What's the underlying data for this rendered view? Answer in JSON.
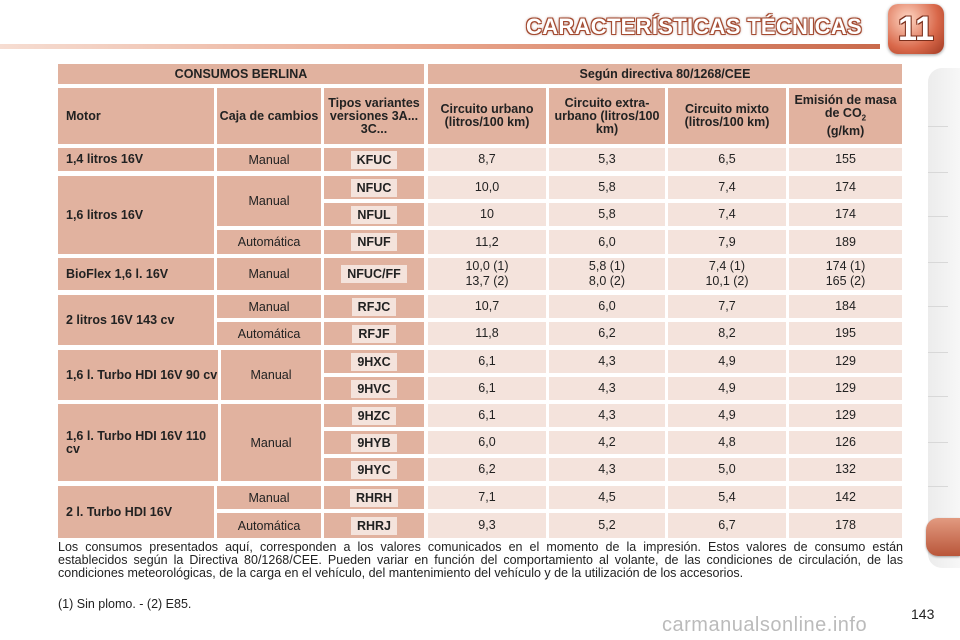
{
  "header": {
    "title": "CARACTERÍSTICAS TÉCNICAS",
    "chapter": "11"
  },
  "table": {
    "group_left": "CONSUMOS BERLINA",
    "group_right": "Según directiva 80/1268/CEE",
    "columns": {
      "motor": "Motor",
      "caja": "Caja de cambios",
      "tipos": "Tipos variantes versiones 3A... 3C...",
      "urbano": "Circuito urbano (litros/100 km)",
      "extra": "Circuito extra-urbano (litros/100 km)",
      "mixto": "Circuito mixto (litros/100 km)",
      "emision": "Emisión de masa de CO",
      "emision_sub": "2",
      "emision_unit": "(g/km)"
    },
    "engines": [
      {
        "name": "1,4 litros 16V"
      },
      {
        "name": "1,6 litros 16V"
      },
      {
        "name": "BioFlex 1,6 l. 16V"
      },
      {
        "name": "2 litros 16V 143 cv"
      },
      {
        "name": "1,6 l. Turbo HDI 16V 90 cv"
      },
      {
        "name": "1,6 l. Turbo HDI 16V 110 cv"
      },
      {
        "name": "2 l. Turbo HDI 16V"
      }
    ],
    "transmissions": [
      {
        "label": "Manual"
      },
      {
        "label": "Manual"
      },
      {
        "label": "Automática"
      },
      {
        "label": "Manual"
      },
      {
        "label": "Manual"
      },
      {
        "label": "Automática"
      },
      {
        "label": "Manual"
      },
      {
        "label": "Manual"
      },
      {
        "label": "Manual"
      },
      {
        "label": "Automática"
      }
    ],
    "rows": [
      {
        "code": "KFUC",
        "urbano": "8,7",
        "extra": "5,3",
        "mixto": "6,5",
        "co2": "155"
      },
      {
        "code": "NFUC",
        "urbano": "10,0",
        "extra": "5,8",
        "mixto": "7,4",
        "co2": "174"
      },
      {
        "code": "NFUL",
        "urbano": "10",
        "extra": "5,8",
        "mixto": "7,4",
        "co2": "174"
      },
      {
        "code": "NFUF",
        "urbano": "11,2",
        "extra": "6,0",
        "mixto": "7,9",
        "co2": "189"
      },
      {
        "code": "NFUC/FF",
        "urbano": "10,0 (1)",
        "urbano2": "13,7 (2)",
        "extra": "5,8 (1)",
        "extra2": "8,0 (2)",
        "mixto": "7,4 (1)",
        "mixto2": "10,1 (2)",
        "co2": "174 (1)",
        "co22": "165 (2)"
      },
      {
        "code": "RFJC",
        "urbano": "10,7",
        "extra": "6,0",
        "mixto": "7,7",
        "co2": "184"
      },
      {
        "code": "RFJF",
        "urbano": "11,8",
        "extra": "6,2",
        "mixto": "8,2",
        "co2": "195"
      },
      {
        "code": "9HXC",
        "urbano": "6,1",
        "extra": "4,3",
        "mixto": "4,9",
        "co2": "129"
      },
      {
        "code": "9HVC",
        "urbano": "6,1",
        "extra": "4,3",
        "mixto": "4,9",
        "co2": "129"
      },
      {
        "code": "9HZC",
        "urbano": "6,1",
        "extra": "4,3",
        "mixto": "4,9",
        "co2": "129"
      },
      {
        "code": "9HYB",
        "urbano": "6,0",
        "extra": "4,2",
        "mixto": "4,8",
        "co2": "126"
      },
      {
        "code": "9HYC",
        "urbano": "6,2",
        "extra": "4,3",
        "mixto": "5,0",
        "co2": "132"
      },
      {
        "code": "RHRH",
        "urbano": "7,1",
        "extra": "4,5",
        "mixto": "5,4",
        "co2": "142"
      },
      {
        "code": "RHRJ",
        "urbano": "9,3",
        "extra": "5,2",
        "mixto": "6,7",
        "co2": "178"
      }
    ]
  },
  "notes": "Los consumos presentados aquí, corresponden a los valores comunicados en el momento de la impresión. Estos valores de consumo están establecidos según la Directiva 80/1268/CEE. Pueden variar en función del comportamiento al volante, de las condiciones de circulación, de las condiciones meteorológicas, de la carga en el vehículo, del mantenimiento del vehículo y de la utilización de los accesorios.",
  "footnote": "(1) Sin plomo. - (2) E85.",
  "page_number": "143",
  "watermark": "carmanualsonline.info"
}
